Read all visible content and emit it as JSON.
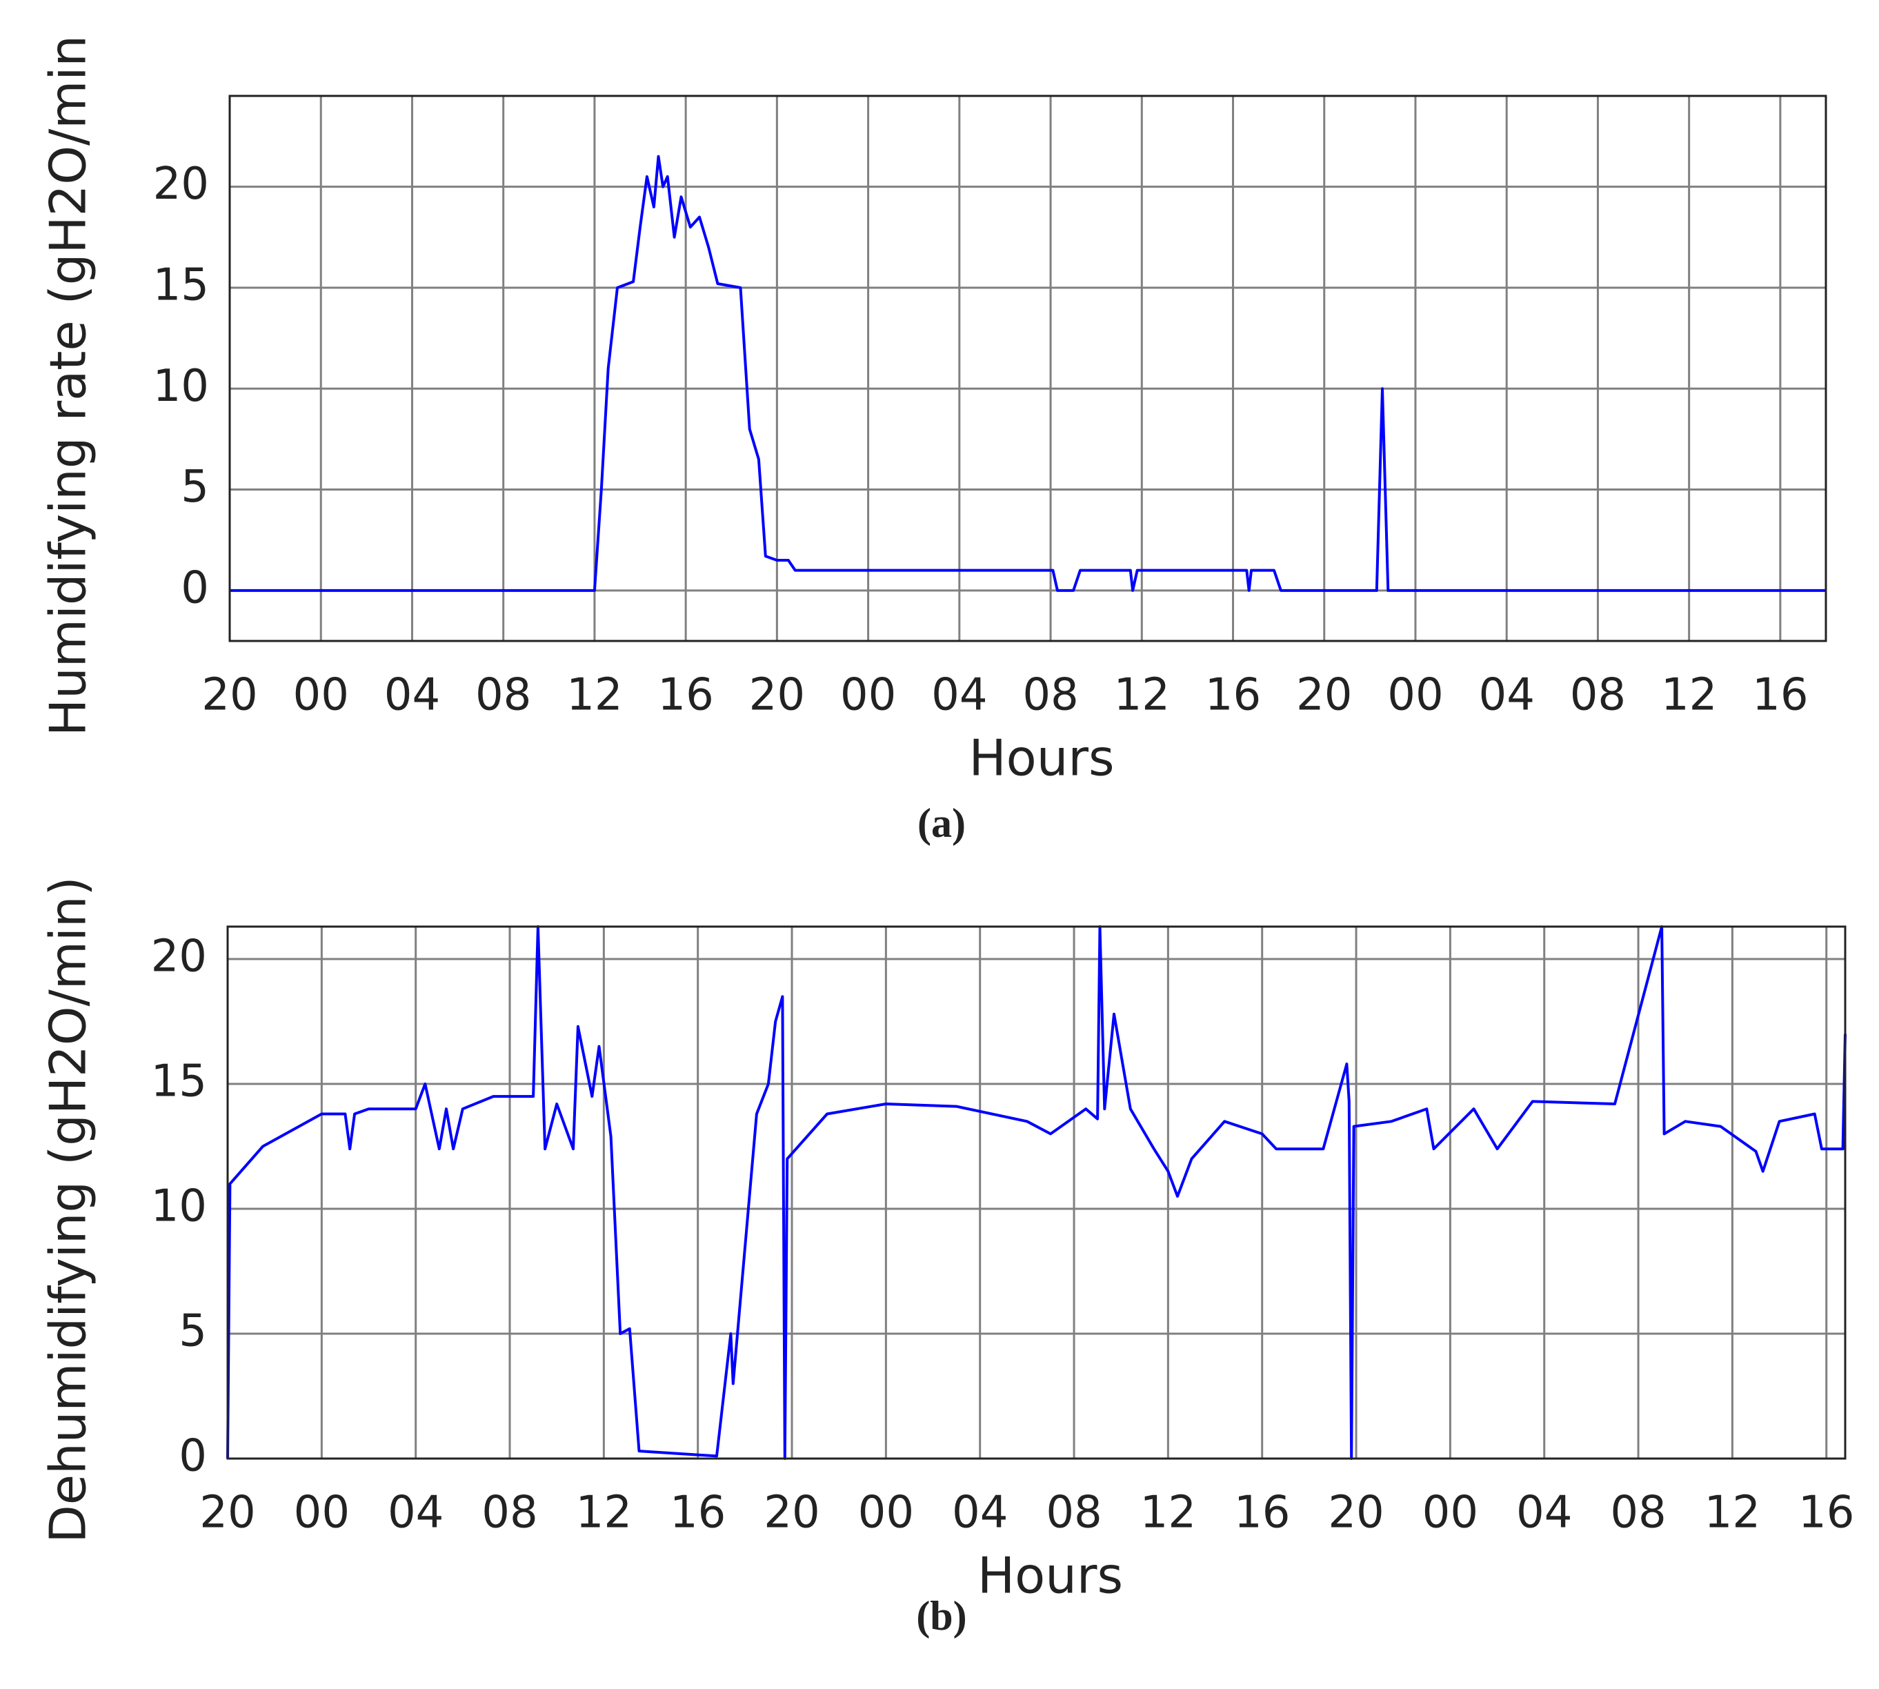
{
  "chart_data": [
    {
      "type": "line",
      "caption": "(a)",
      "xlabel": "Hours",
      "ylabel": "Humidifying rate (gH2O/min",
      "color": "#0000ff",
      "grid": true,
      "xlim": [
        0,
        70
      ],
      "ylim": [
        -2.5,
        24.5
      ],
      "xticks": [
        {
          "value": 0,
          "label": "20"
        },
        {
          "value": 4,
          "label": "00"
        },
        {
          "value": 8,
          "label": "04"
        },
        {
          "value": 12,
          "label": "08"
        },
        {
          "value": 16,
          "label": "12"
        },
        {
          "value": 20,
          "label": "16"
        },
        {
          "value": 24,
          "label": "20"
        },
        {
          "value": 28,
          "label": "00"
        },
        {
          "value": 32,
          "label": "04"
        },
        {
          "value": 36,
          "label": "08"
        },
        {
          "value": 40,
          "label": "12"
        },
        {
          "value": 44,
          "label": "16"
        },
        {
          "value": 48,
          "label": "20"
        },
        {
          "value": 52,
          "label": "00"
        },
        {
          "value": 56,
          "label": "04"
        },
        {
          "value": 60,
          "label": "08"
        },
        {
          "value": 64,
          "label": "12"
        },
        {
          "value": 68,
          "label": "16"
        }
      ],
      "yticks": [
        0,
        5,
        10,
        15,
        20
      ],
      "x": [
        0,
        16,
        16.3,
        16.6,
        17,
        17.7,
        18,
        18.3,
        18.6,
        18.8,
        19,
        19.2,
        19.5,
        19.8,
        20.2,
        20.6,
        21,
        21.4,
        22.4,
        22.8,
        23.2,
        23.5,
        24,
        24.5,
        24.8,
        36.1,
        36.3,
        37,
        37.3,
        39.5,
        39.6,
        39.8,
        44.6,
        44.7,
        44.8,
        45.8,
        46.1,
        50.3,
        50.55,
        50.8,
        70
      ],
      "values": [
        0,
        0,
        5,
        11,
        15,
        15.3,
        18,
        20.5,
        19,
        21.5,
        20,
        20.5,
        17.5,
        19.5,
        18,
        18.5,
        17,
        15.2,
        15,
        8,
        6.5,
        1.7,
        1.5,
        1.5,
        1,
        1,
        0,
        0,
        1,
        1,
        0,
        1,
        1,
        0,
        1,
        1,
        0,
        0,
        10,
        0,
        0
      ]
    },
    {
      "type": "line",
      "caption": "(b)",
      "xlabel": "Hours",
      "ylabel": "Dehumidifying (gH2O/min)",
      "color": "#0000ff",
      "grid": true,
      "xlim": [
        0,
        68.8
      ],
      "ylim": [
        0,
        21.3
      ],
      "xticks": [
        {
          "value": 0,
          "label": "20"
        },
        {
          "value": 4,
          "label": "00"
        },
        {
          "value": 8,
          "label": "04"
        },
        {
          "value": 12,
          "label": "08"
        },
        {
          "value": 16,
          "label": "12"
        },
        {
          "value": 20,
          "label": "16"
        },
        {
          "value": 24,
          "label": "20"
        },
        {
          "value": 28,
          "label": "00"
        },
        {
          "value": 32,
          "label": "04"
        },
        {
          "value": 36,
          "label": "08"
        },
        {
          "value": 40,
          "label": "12"
        },
        {
          "value": 44,
          "label": "16"
        },
        {
          "value": 48,
          "label": "20"
        },
        {
          "value": 52,
          "label": "00"
        },
        {
          "value": 56,
          "label": "04"
        },
        {
          "value": 60,
          "label": "08"
        },
        {
          "value": 64,
          "label": "12"
        },
        {
          "value": 68,
          "label": "16"
        }
      ],
      "yticks": [
        0,
        5,
        10,
        15,
        20
      ],
      "x": [
        0,
        0.1,
        1.5,
        4,
        5,
        5.2,
        5.4,
        6,
        8,
        8.4,
        9,
        9.3,
        9.6,
        10,
        11.3,
        13,
        13.2,
        13.5,
        14,
        14.7,
        14.9,
        15.5,
        15.8,
        16.3,
        16.7,
        17.1,
        17.5,
        20.8,
        21.4,
        21.5,
        22.5,
        23,
        23.3,
        23.6,
        23.7,
        23.8,
        25.5,
        28,
        31,
        34,
        35,
        36.5,
        37,
        37.1,
        37.3,
        37.7,
        38.4,
        39.4,
        40,
        40.4,
        41,
        42.4,
        44,
        44.6,
        46.6,
        47.6,
        47.7,
        47.8,
        47.9,
        49.5,
        51,
        51.3,
        53,
        54,
        55.5,
        59,
        61,
        61.1,
        62,
        63.5,
        65,
        65.3,
        66,
        67.5,
        67.8,
        68.7,
        68.8
      ],
      "values": [
        0,
        11,
        12.5,
        13.8,
        13.8,
        12.4,
        13.8,
        14,
        14,
        15,
        12.4,
        14,
        12.4,
        14,
        14.5,
        14.5,
        21.3,
        12.4,
        14.2,
        12.4,
        17.3,
        14.5,
        16.5,
        12.9,
        5,
        5.2,
        0.3,
        0.1,
        5,
        3,
        13.8,
        15,
        17.5,
        18.5,
        0,
        12,
        13.8,
        14.2,
        14.1,
        13.5,
        13,
        14,
        13.6,
        21.3,
        14,
        17.8,
        14,
        12.4,
        11.5,
        10.5,
        12,
        13.5,
        13,
        12.4,
        12.4,
        15.8,
        14.3,
        0,
        13.3,
        13.5,
        14,
        12.4,
        14,
        12.4,
        14.3,
        14.2,
        21.3,
        13,
        13.5,
        13.3,
        12.3,
        11.5,
        13.5,
        13.8,
        12.4,
        12.4,
        17
      ]
    }
  ]
}
